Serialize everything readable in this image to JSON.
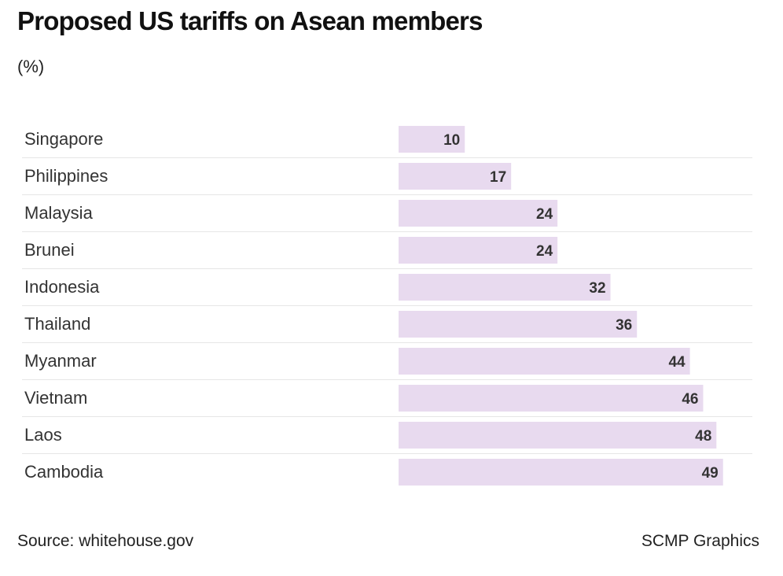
{
  "header": {
    "title": "Proposed US tariffs on Asean members",
    "subtitle": "(%)"
  },
  "footer": {
    "source": "Source: whitehouse.gov",
    "credit": "SCMP Graphics"
  },
  "colors": {
    "bar": "#e8daef",
    "divider": "#e6e6e6",
    "label": "#333333",
    "value_label": "#333333"
  },
  "chart_data": {
    "type": "bar",
    "orientation": "horizontal",
    "categories": [
      "Singapore",
      "Philippines",
      "Malaysia",
      "Brunei",
      "Indonesia",
      "Thailand",
      "Myanmar",
      "Vietnam",
      "Laos",
      "Cambodia"
    ],
    "values": [
      10,
      17,
      24,
      24,
      32,
      36,
      44,
      46,
      48,
      49
    ],
    "data_labels": [
      "10",
      "17",
      "24",
      "24",
      "32",
      "36",
      "44",
      "46",
      "48",
      "49"
    ],
    "title": "Proposed US tariffs on Asean members",
    "subtitle": "(%)",
    "xlim": [
      0,
      52
    ],
    "grid": false,
    "legend": "none"
  }
}
